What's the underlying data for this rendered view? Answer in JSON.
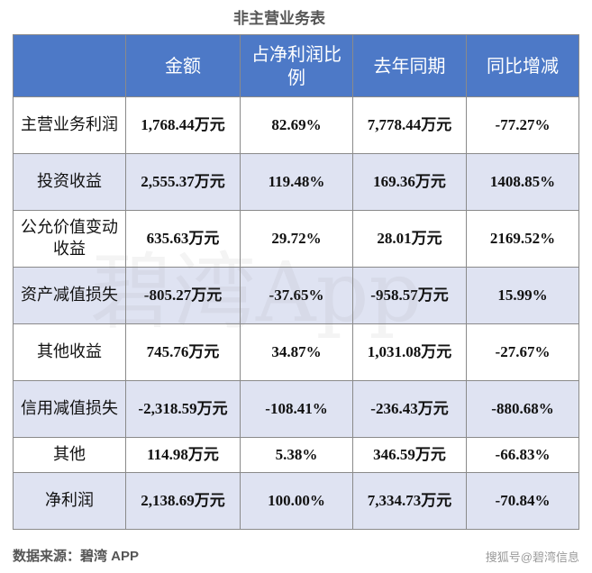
{
  "title": "非主营业务表",
  "headers": [
    "",
    "金额",
    "占净利润比例",
    "去年同期",
    "同比增减"
  ],
  "rows": [
    {
      "name": "主营业务利润",
      "amount": "1,768.44万元",
      "ratio": "82.69%",
      "last_year": "7,778.44万元",
      "yoy": "-77.27%"
    },
    {
      "name": "投资收益",
      "amount": "2,555.37万元",
      "ratio": "119.48%",
      "last_year": "169.36万元",
      "yoy": "1408.85%"
    },
    {
      "name": "公允价值变动收益",
      "amount": "635.63万元",
      "ratio": "29.72%",
      "last_year": "28.01万元",
      "yoy": "2169.52%"
    },
    {
      "name": "资产减值损失",
      "amount": "-805.27万元",
      "ratio": "-37.65%",
      "last_year": "-958.57万元",
      "yoy": "15.99%"
    },
    {
      "name": "其他收益",
      "amount": "745.76万元",
      "ratio": "34.87%",
      "last_year": "1,031.08万元",
      "yoy": "-27.67%"
    },
    {
      "name": "信用减值损失",
      "amount": "-2,318.59万元",
      "ratio": "-108.41%",
      "last_year": "-236.43万元",
      "yoy": "-880.68%"
    },
    {
      "name": "其他",
      "amount": "114.98万元",
      "ratio": "5.38%",
      "last_year": "346.59万元",
      "yoy": "-66.83%"
    },
    {
      "name": "净利润",
      "amount": "2,138.69万元",
      "ratio": "100.00%",
      "last_year": "7,334.73万元",
      "yoy": "-70.84%"
    }
  ],
  "watermark": "碧湾App",
  "source": "数据来源：碧湾 APP",
  "credit": "搜狐号@碧湾信息",
  "colors": {
    "header_bg": "#4d79c7",
    "stripe": "#dfe3f2",
    "border": "#8a8a8a"
  }
}
